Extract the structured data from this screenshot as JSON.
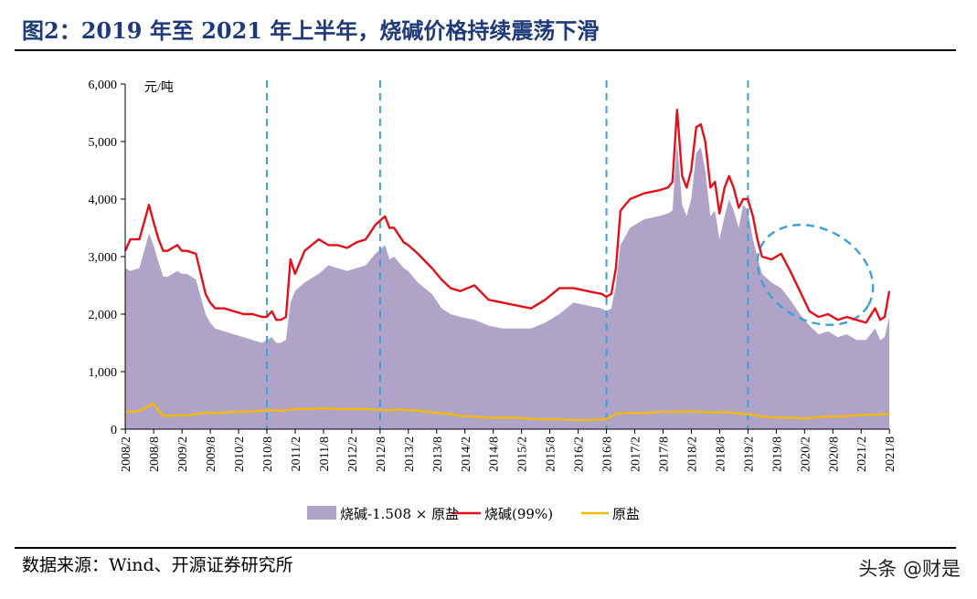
{
  "title": "图2：2019 年至 2021 年上半年，烧碱价格持续震荡下滑",
  "source": "数据来源：Wind、开源证券研究所",
  "watermark": "头条 @财是",
  "colors": {
    "title": "#1f3a7a",
    "area": "#b0a3c8",
    "caustic": "#e3101a",
    "salt": "#f5b800",
    "dashed": "#3fa0d8"
  },
  "chart_data": {
    "type": "area",
    "ylabel": "元/吨",
    "ylim": [
      0,
      6000
    ],
    "yticks": [
      "6,000",
      "5,000",
      "4,000",
      "3,000",
      "2,000",
      "1,000",
      "0"
    ],
    "xticks": [
      "2008/2",
      "2008/8",
      "2009/2",
      "2009/8",
      "2010/2",
      "2010/8",
      "2011/2",
      "2011/8",
      "2012/2",
      "2012/8",
      "2013/2",
      "2013/8",
      "2014/2",
      "2014/8",
      "2015/2",
      "2015/8",
      "2016/2",
      "2016/8",
      "2017/2",
      "2017/8",
      "2018/2",
      "2018/8",
      "2019/2",
      "2019/8",
      "2020/2",
      "2020/8",
      "2021/2",
      "2021/8"
    ],
    "x": [
      2008.08,
      2008.17,
      2008.33,
      2008.5,
      2008.58,
      2008.67,
      2008.75,
      2008.83,
      2009.0,
      2009.08,
      2009.17,
      2009.33,
      2009.5,
      2009.58,
      2009.67,
      2009.83,
      2010.0,
      2010.17,
      2010.33,
      2010.5,
      2010.58,
      2010.67,
      2010.75,
      2010.83,
      2010.92,
      2011.0,
      2011.08,
      2011.25,
      2011.5,
      2011.67,
      2011.83,
      2012.0,
      2012.17,
      2012.33,
      2012.5,
      2012.67,
      2012.75,
      2012.83,
      2013.0,
      2013.08,
      2013.25,
      2013.5,
      2013.67,
      2013.83,
      2014.0,
      2014.25,
      2014.5,
      2014.75,
      2015.0,
      2015.25,
      2015.5,
      2015.75,
      2016.0,
      2016.25,
      2016.5,
      2016.58,
      2016.67,
      2016.75,
      2016.83,
      2017.0,
      2017.25,
      2017.5,
      2017.67,
      2017.75,
      2017.83,
      2017.92,
      2018.0,
      2018.08,
      2018.17,
      2018.25,
      2018.33,
      2018.42,
      2018.5,
      2018.58,
      2018.67,
      2018.75,
      2018.83,
      2018.92,
      2019.0,
      2019.08,
      2019.17,
      2019.25,
      2019.33,
      2019.5,
      2019.67,
      2019.83,
      2020.0,
      2020.17,
      2020.33,
      2020.5,
      2020.67,
      2020.83,
      2021.0,
      2021.17,
      2021.33,
      2021.42,
      2021.5,
      2021.58
    ],
    "series": [
      {
        "name": "烧碱-1.508 × 原盐",
        "values": [
          2800,
          2750,
          2800,
          3400,
          3200,
          2900,
          2650,
          2650,
          2750,
          2700,
          2700,
          2600,
          2000,
          1850,
          1750,
          1700,
          1650,
          1600,
          1550,
          1500,
          1550,
          1600,
          1500,
          1500,
          1550,
          2200,
          2400,
          2550,
          2700,
          2850,
          2800,
          2750,
          2800,
          2850,
          3050,
          3200,
          2950,
          3000,
          2800,
          2750,
          2550,
          2350,
          2100,
          2000,
          1950,
          1900,
          1800,
          1750,
          1750,
          1750,
          1850,
          2000,
          2200,
          2150,
          2100,
          2050,
          2100,
          2500,
          3200,
          3500,
          3650,
          3700,
          3750,
          3800,
          5000,
          3900,
          3700,
          4000,
          4800,
          4900,
          4500,
          3700,
          3800,
          3300,
          3700,
          4000,
          3800,
          3500,
          3900,
          3800,
          3300,
          3000,
          2700,
          2550,
          2450,
          2250,
          2000,
          1800,
          1650,
          1700,
          1600,
          1650,
          1550,
          1550,
          1750,
          1550,
          1600,
          1950
        ]
      },
      {
        "name": "烧碱(99%)",
        "values": [
          3100,
          3300,
          3300,
          3900,
          3600,
          3300,
          3100,
          3100,
          3200,
          3100,
          3100,
          3050,
          2350,
          2200,
          2100,
          2100,
          2050,
          2000,
          2000,
          1950,
          1950,
          2050,
          1900,
          1900,
          1950,
          2950,
          2700,
          3100,
          3300,
          3200,
          3200,
          3150,
          3250,
          3300,
          3550,
          3700,
          3500,
          3500,
          3250,
          3200,
          3050,
          2800,
          2600,
          2450,
          2400,
          2500,
          2250,
          2200,
          2150,
          2100,
          2250,
          2450,
          2450,
          2400,
          2350,
          2300,
          2350,
          2800,
          3800,
          4000,
          4100,
          4150,
          4200,
          4300,
          5550,
          4400,
          4200,
          4500,
          5250,
          5300,
          5000,
          4200,
          4300,
          3750,
          4200,
          4400,
          4200,
          3850,
          4000,
          4000,
          3700,
          3300,
          3000,
          2950,
          3050,
          2750,
          2400,
          2050,
          1950,
          2000,
          1900,
          1950,
          1900,
          1850,
          2100,
          1900,
          1950,
          2400
        ]
      },
      {
        "name": "原盐",
        "values": [
          300,
          300,
          320,
          400,
          450,
          320,
          230,
          230,
          240,
          240,
          240,
          260,
          290,
          280,
          280,
          290,
          300,
          300,
          310,
          320,
          330,
          330,
          320,
          320,
          330,
          340,
          350,
          350,
          360,
          360,
          350,
          350,
          350,
          350,
          340,
          330,
          330,
          340,
          340,
          330,
          320,
          290,
          280,
          260,
          230,
          220,
          200,
          200,
          200,
          180,
          170,
          170,
          160,
          160,
          170,
          180,
          220,
          270,
          280,
          280,
          280,
          300,
          300,
          300,
          300,
          300,
          310,
          310,
          300,
          300,
          290,
          290,
          290,
          290,
          300,
          300,
          280,
          280,
          260,
          260,
          250,
          230,
          220,
          210,
          200,
          200,
          190,
          190,
          210,
          220,
          220,
          230,
          240,
          250,
          250,
          260,
          260,
          260
        ]
      }
    ],
    "vlines_at": [
      "2010/8",
      "2012/8",
      "2016/8",
      "2019/2"
    ],
    "annotation": "dashed ellipse around 2019/2–2021/2 decline",
    "legend": {
      "placement": "bottom",
      "items": [
        "烧碱-1.508 × 原盐",
        "烧碱(99%)",
        "原盐"
      ]
    },
    "grid": false
  }
}
